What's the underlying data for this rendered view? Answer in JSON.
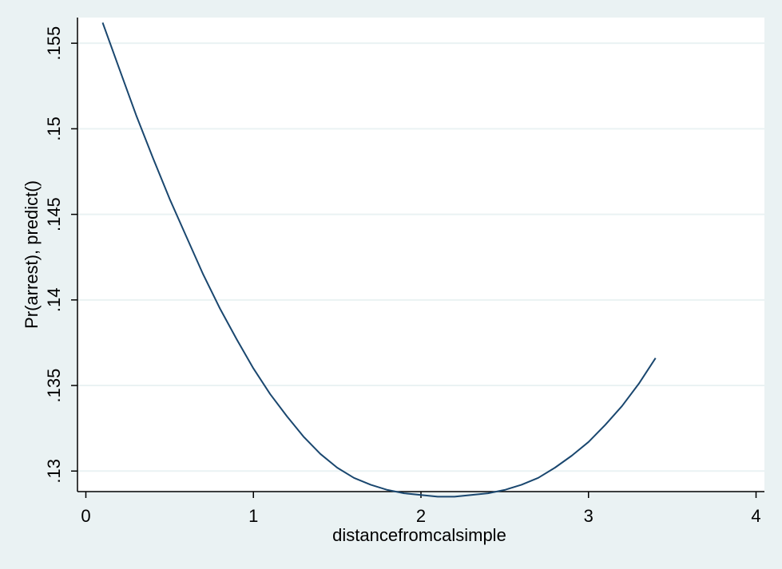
{
  "chart_data": {
    "type": "line",
    "xlabel": "distancefromcalsimple",
    "ylabel": "Pr(arrest), predict()",
    "xlim": [
      -0.05,
      4.05
    ],
    "ylim": [
      0.1288,
      0.1565
    ],
    "x_ticks": [
      0,
      1,
      2,
      3,
      4
    ],
    "x_tick_labels": [
      "0",
      "1",
      "2",
      "3",
      "4"
    ],
    "y_ticks": [
      0.13,
      0.135,
      0.14,
      0.145,
      0.15,
      0.155
    ],
    "y_tick_labels": [
      ".13",
      ".135",
      ".14",
      ".145",
      ".15",
      ".155"
    ],
    "grid": "horizontal",
    "legend": "none",
    "series": [
      {
        "color": "#1a476f",
        "x": [
          0.1,
          0.2,
          0.3,
          0.4,
          0.5,
          0.6,
          0.7,
          0.8,
          0.9,
          1.0,
          1.1,
          1.2,
          1.3,
          1.4,
          1.5,
          1.6,
          1.7,
          1.8,
          1.9,
          2.0,
          2.1,
          2.2,
          2.3,
          2.4,
          2.5,
          2.6,
          2.7,
          2.8,
          2.9,
          3.0,
          3.1,
          3.2,
          3.3,
          3.4
        ],
        "y": [
          0.1562,
          0.1535,
          0.1508,
          0.1483,
          0.1459,
          0.1437,
          0.1415,
          0.1395,
          0.1377,
          0.136,
          0.1345,
          0.1332,
          0.132,
          0.131,
          0.1302,
          0.1296,
          0.1292,
          0.1289,
          0.1287,
          0.1286,
          0.1285,
          0.1285,
          0.1286,
          0.1287,
          0.1289,
          0.1292,
          0.1296,
          0.1302,
          0.1309,
          0.1317,
          0.1327,
          0.1338,
          0.1351,
          0.1366
        ]
      }
    ]
  },
  "colors": {
    "background": "#eaf2f3",
    "plot_area": "#ffffff",
    "grid": "#eaf2f3",
    "axis": "#000000",
    "line": "#1a476f"
  }
}
